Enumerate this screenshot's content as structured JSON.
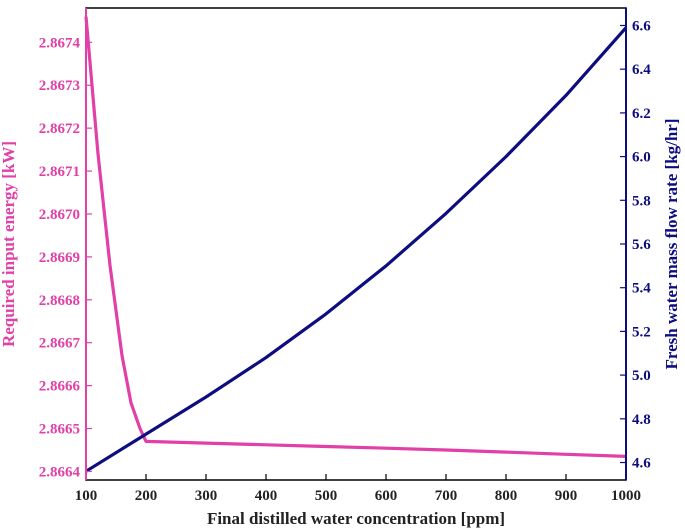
{
  "chart_data": {
    "type": "line",
    "title": "",
    "xlabel": "Final distilled water concentration [ppm]",
    "ylabel_left": "Required input energy [kW]",
    "ylabel_right": "Fresh water mass flow rate [kg/hr]",
    "xlim": [
      100,
      1000
    ],
    "ylim_left": [
      2.86638,
      2.86748
    ],
    "ylim_right": [
      4.52,
      6.68
    ],
    "x_ticks": [
      "100",
      "200",
      "300",
      "400",
      "500",
      "600",
      "700",
      "800",
      "900",
      "1000"
    ],
    "y_left_ticks": [
      "2.8664",
      "2.8665",
      "2.8666",
      "2.8667",
      "2.8668",
      "2.8669",
      "2.8670",
      "2.8671",
      "2.8672",
      "2.8673",
      "2.8674"
    ],
    "y_right_ticks": [
      "4.6",
      "4.8",
      "5.0",
      "5.2",
      "5.4",
      "5.6",
      "5.8",
      "6.0",
      "6.2",
      "6.4",
      "6.6"
    ],
    "grid": false,
    "colors": {
      "left": "#e040a8",
      "right": "#0d0d80",
      "frame": "#000000"
    },
    "series": [
      {
        "axis": "left",
        "color": "#e040a8",
        "x": [
          100,
          120,
          140,
          160,
          175,
          190,
          200,
          300,
          400,
          500,
          600,
          700,
          800,
          900,
          1000
        ],
        "y": [
          2.86746,
          2.86714,
          2.86688,
          2.86667,
          2.86656,
          2.8665,
          2.86647,
          2.866466,
          2.866462,
          2.866458,
          2.866454,
          2.86645,
          2.866445,
          2.86644,
          2.866435
        ]
      },
      {
        "axis": "right",
        "color": "#0d0d80",
        "x": [
          100,
          200,
          300,
          400,
          500,
          600,
          700,
          800,
          900,
          1000
        ],
        "y": [
          4.56,
          4.73,
          4.9,
          5.08,
          5.28,
          5.5,
          5.74,
          6.0,
          6.28,
          6.59
        ]
      }
    ]
  }
}
